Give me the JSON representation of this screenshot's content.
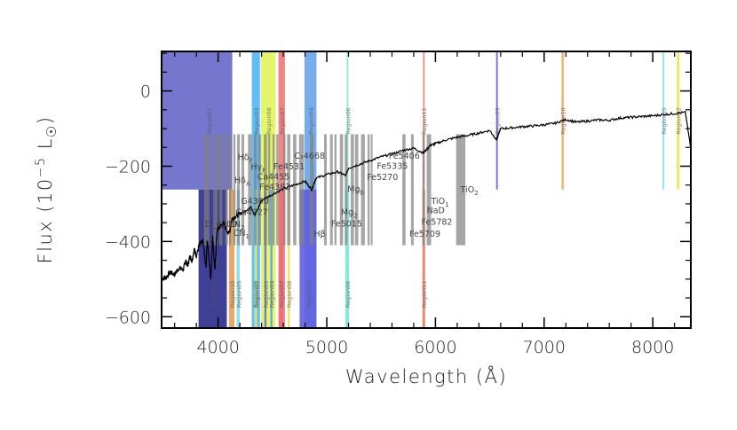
{
  "chart_data": {
    "type": "line",
    "xlabel": "Wavelength (Å)",
    "ylabel_parts": [
      "Flux (10",
      "−5",
      " L",
      "☉",
      ")"
    ],
    "xlim": [
      3480,
      8350
    ],
    "ylim": [
      -630,
      105
    ],
    "xticks": [
      4000,
      5000,
      6000,
      7000,
      8000
    ],
    "yticks": [
      0,
      -200,
      -400,
      -600
    ],
    "ytick_labels": [
      "0",
      "−200",
      "−400",
      "−600"
    ],
    "grid": false,
    "spectrum": {
      "x": [
        3480,
        3520,
        3560,
        3600,
        3640,
        3680,
        3700,
        3720,
        3740,
        3760,
        3780,
        3800,
        3830,
        3860,
        3889,
        3900,
        3933,
        3950,
        3970,
        3990,
        4010,
        4050,
        4101,
        4130,
        4180,
        4220,
        4300,
        4340,
        4400,
        4500,
        4600,
        4700,
        4800,
        4861,
        4900,
        5000,
        5100,
        5175,
        5200,
        5300,
        5400,
        5500,
        5600,
        5700,
        5800,
        5890,
        5950,
        6000,
        6100,
        6200,
        6300,
        6400,
        6500,
        6563,
        6600,
        6700,
        6800,
        6900,
        7000,
        7100,
        7200,
        7300,
        7400,
        7500,
        7600,
        7700,
        7800,
        7900,
        8000,
        8100,
        8200,
        8300,
        8350
      ],
      "y": [
        -500,
        -495,
        -482,
        -488,
        -470,
        -475,
        -450,
        -465,
        -440,
        -452,
        -420,
        -438,
        -408,
        -400,
        -470,
        -395,
        -500,
        -382,
        -480,
        -372,
        -362,
        -352,
        -380,
        -338,
        -330,
        -325,
        -308,
        -330,
        -290,
        -275,
        -260,
        -250,
        -240,
        -262,
        -232,
        -222,
        -215,
        -225,
        -205,
        -195,
        -185,
        -175,
        -168,
        -158,
        -152,
        -165,
        -145,
        -140,
        -130,
        -123,
        -118,
        -112,
        -105,
        -130,
        -100,
        -98,
        -95,
        -93,
        -90,
        -86,
        -76,
        -83,
        -80,
        -77,
        -78,
        -72,
        -70,
        -68,
        -66,
        -63,
        -60,
        -57,
        -155
      ]
    },
    "regions_top": [
      {
        "x0": 3480,
        "x1": 4130,
        "y0": -262,
        "y1": 105,
        "color": "#5d5fc7",
        "label": "Region01"
      },
      {
        "x0": 4310,
        "x1": 4385,
        "y0": -628,
        "y1": 105,
        "color": "#47b2f3",
        "label": "Region03"
      },
      {
        "x0": 4395,
        "x1": 4530,
        "y0": -628,
        "y1": 105,
        "color": "#dff554",
        "label": "Region08"
      },
      {
        "x0": 4555,
        "x1": 4615,
        "y0": -628,
        "y1": 105,
        "color": "#ee7070",
        "label": "Region07"
      },
      {
        "x0": 4795,
        "x1": 4905,
        "y0": -628,
        "y1": 105,
        "color": "#5f9fe6",
        "label": "Region04"
      },
      {
        "x0": 5183,
        "x1": 5198,
        "y0": -628,
        "y1": 105,
        "color": "#7fe8de",
        "label": "Region06"
      },
      {
        "x0": 5885,
        "x1": 5900,
        "y0": -628,
        "y1": 105,
        "color": "#e8866a",
        "label": "Region11"
      },
      {
        "x0": 6558,
        "x1": 6572,
        "y0": -262,
        "y1": 105,
        "color": "#6060e0",
        "label": "Region09"
      },
      {
        "x0": 7160,
        "x1": 7180,
        "y0": -262,
        "y1": 105,
        "color": "#f2a54a",
        "label": "Region10"
      },
      {
        "x0": 8090,
        "x1": 8100,
        "y0": -262,
        "y1": 105,
        "color": "#7fe0e8",
        "label": "Region05"
      },
      {
        "x0": 8220,
        "x1": 8245,
        "y0": -262,
        "y1": 105,
        "color": "#f5e04a",
        "label": "Region02"
      }
    ],
    "regions_bottom": [
      {
        "x0": 3820,
        "x1": 4080,
        "color": "#2a2a8a",
        "label": "Region01"
      },
      {
        "x0": 4100,
        "x1": 4150,
        "color": "#e6a055",
        "label": "Region10"
      },
      {
        "x0": 4170,
        "x1": 4200,
        "color": "#8fd8e0",
        "label": "Region05"
      },
      {
        "x0": 4330,
        "x1": 4345,
        "color": "#7fe8de",
        "label": "Region06"
      },
      {
        "x0": 4340,
        "x1": 4360,
        "color": "#e8e060",
        "label": "Region02"
      },
      {
        "x0": 4425,
        "x1": 4445,
        "color": "#6f6fe0",
        "label": "Region09"
      },
      {
        "x0": 4480,
        "x1": 4500,
        "color": "#5f9fe6",
        "label": "Region04"
      },
      {
        "x0": 4560,
        "x1": 4600,
        "color": "#ee7070",
        "label": "Region07"
      },
      {
        "x0": 4640,
        "x1": 4660,
        "color": "#e8e060",
        "label": "Region08"
      },
      {
        "x0": 4750,
        "x1": 4905,
        "color": "#5f5fe0",
        "label": "Region03"
      },
      {
        "x0": 5170,
        "x1": 5205,
        "color": "#7fe8de",
        "label": "Region06"
      },
      {
        "x0": 5880,
        "x1": 5905,
        "color": "#e8866a",
        "label": "Region11"
      }
    ],
    "index_bands": [
      {
        "x0": 3870,
        "x1": 3920
      },
      {
        "x0": 3955,
        "x1": 3995
      },
      {
        "x0": 4010,
        "x1": 4040
      },
      {
        "x0": 4065,
        "x1": 4090
      },
      {
        "x0": 4100,
        "x1": 4120
      },
      {
        "x0": 4140,
        "x1": 4160
      },
      {
        "x0": 4175,
        "x1": 4200
      },
      {
        "x0": 4215,
        "x1": 4240
      },
      {
        "x0": 4275,
        "x1": 4310
      },
      {
        "x0": 4330,
        "x1": 4355
      },
      {
        "x0": 4370,
        "x1": 4395
      },
      {
        "x0": 4420,
        "x1": 4450
      },
      {
        "x0": 4460,
        "x1": 4480
      },
      {
        "x0": 4500,
        "x1": 4520
      },
      {
        "x0": 4535,
        "x1": 4555
      },
      {
        "x0": 4600,
        "x1": 4620
      },
      {
        "x0": 4635,
        "x1": 4665
      },
      {
        "x0": 4690,
        "x1": 4720
      },
      {
        "x0": 4745,
        "x1": 4790
      },
      {
        "x0": 4845,
        "x1": 4880
      },
      {
        "x0": 4975,
        "x1": 5000
      },
      {
        "x0": 5030,
        "x1": 5055
      },
      {
        "x0": 5070,
        "x1": 5090
      },
      {
        "x0": 5120,
        "x1": 5150
      },
      {
        "x0": 5165,
        "x1": 5190
      },
      {
        "x0": 5220,
        "x1": 5250
      },
      {
        "x0": 5260,
        "x1": 5290
      },
      {
        "x0": 5315,
        "x1": 5350
      },
      {
        "x0": 5375,
        "x1": 5395
      },
      {
        "x0": 5405,
        "x1": 5420
      },
      {
        "x0": 5695,
        "x1": 5725
      },
      {
        "x0": 5775,
        "x1": 5800
      },
      {
        "x0": 5880,
        "x1": 5900
      },
      {
        "x0": 5920,
        "x1": 5960
      },
      {
        "x0": 6190,
        "x1": 6275
      }
    ],
    "index_labels": [
      {
        "text": "Hδ",
        "sub": "F",
        "x": 4180,
        "y": -183
      },
      {
        "text": "Hγ",
        "sub": "F",
        "x": 4300,
        "y": -210
      },
      {
        "text": "Hδ",
        "sub": "A",
        "x": 4150,
        "y": -245
      },
      {
        "text": "Ca4455",
        "x": 4360,
        "y": -235
      },
      {
        "text": "C₂4668",
        "x": 4700,
        "y": -180
      },
      {
        "text": "Fe4531",
        "x": 4510,
        "y": -208
      },
      {
        "text": "Fe4383",
        "x": 4380,
        "y": -262
      },
      {
        "text": "Ca4227",
        "x": 4160,
        "y": -330
      },
      {
        "text": "G4300",
        "x": 4210,
        "y": -300
      },
      {
        "text": "D_4000",
        "x": 3880,
        "y": -362
      },
      {
        "text": "CN",
        "sub": "2",
        "x": 4095,
        "y": -362
      },
      {
        "text": "CN",
        "sub": "1",
        "x": 4140,
        "y": -385
      },
      {
        "text": "Hβ",
        "x": 4880,
        "y": -387
      },
      {
        "text": "Fe5406",
        "x": 5570,
        "y": -180
      },
      {
        "text": "Fe5335",
        "x": 5460,
        "y": -207
      },
      {
        "text": "Fe5270",
        "x": 5370,
        "y": -237
      },
      {
        "text": "Mg",
        "sub": "b",
        "x": 5190,
        "y": -268
      },
      {
        "text": "Mg",
        "sub": "2",
        "x": 5130,
        "y": -330
      },
      {
        "text": "Fe5015",
        "x": 5040,
        "y": -360
      },
      {
        "text": "TiO",
        "sub": "2",
        "x": 6230,
        "y": -270
      },
      {
        "text": "TiO",
        "sub": "1",
        "x": 5960,
        "y": -300
      },
      {
        "text": "NaD",
        "x": 5920,
        "y": -325
      },
      {
        "text": "Fe5782",
        "x": 5870,
        "y": -355
      },
      {
        "text": "Fe5709",
        "x": 5760,
        "y": -387
      }
    ]
  }
}
